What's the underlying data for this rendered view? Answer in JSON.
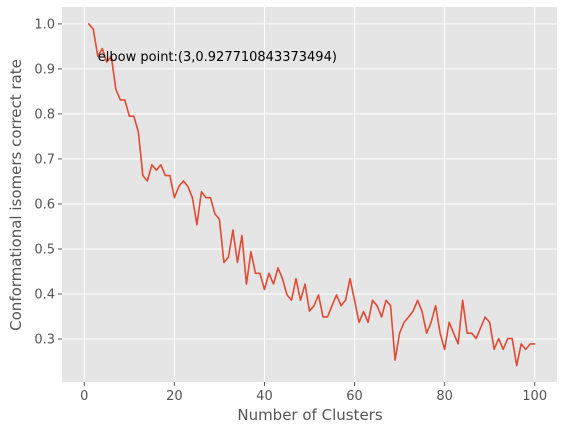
{
  "chart_data": {
    "type": "line",
    "xlabel": "Number of Clusters",
    "ylabel": "Conformational isomers correct rate",
    "xlim": [
      -4.95,
      104.95
    ],
    "ylim": [
      0.2045,
      1.0375
    ],
    "x_ticks": [
      0,
      20,
      40,
      60,
      80,
      100
    ],
    "y_ticks": [
      0.3,
      0.4,
      0.5,
      0.6,
      0.7,
      0.8,
      0.9,
      1.0
    ],
    "x_tick_labels": [
      "0",
      "20",
      "40",
      "60",
      "80",
      "100"
    ],
    "y_tick_labels": [
      "0.3",
      "0.4",
      "0.5",
      "0.6",
      "0.7",
      "0.8",
      "0.9",
      "1.0"
    ],
    "grid": true,
    "series": [
      {
        "color": "#E24A33",
        "x": [
          1,
          2,
          3,
          4,
          5,
          6,
          7,
          8,
          9,
          10,
          11,
          12,
          13,
          14,
          15,
          16,
          17,
          18,
          19,
          20,
          21,
          22,
          23,
          24,
          25,
          26,
          27,
          28,
          29,
          30,
          31,
          32,
          33,
          34,
          35,
          36,
          37,
          38,
          39,
          40,
          41,
          42,
          43,
          44,
          45,
          46,
          47,
          48,
          49,
          50,
          51,
          52,
          53,
          54,
          55,
          56,
          57,
          58,
          59,
          60,
          61,
          62,
          63,
          64,
          65,
          66,
          67,
          68,
          69,
          70,
          71,
          72,
          73,
          74,
          75,
          76,
          77,
          78,
          79,
          80,
          81,
          82,
          83,
          84,
          85,
          86,
          87,
          88,
          89,
          90,
          91,
          92,
          93,
          94,
          95,
          96,
          97,
          98,
          99,
          100
        ],
        "y": [
          1.0,
          0.988,
          0.928,
          0.945,
          0.915,
          0.928,
          0.855,
          0.831,
          0.831,
          0.795,
          0.795,
          0.76,
          0.663,
          0.651,
          0.687,
          0.675,
          0.687,
          0.663,
          0.663,
          0.614,
          0.639,
          0.651,
          0.639,
          0.614,
          0.554,
          0.627,
          0.614,
          0.614,
          0.578,
          0.566,
          0.47,
          0.482,
          0.542,
          0.47,
          0.53,
          0.422,
          0.494,
          0.446,
          0.446,
          0.41,
          0.446,
          0.422,
          0.458,
          0.434,
          0.398,
          0.386,
          0.434,
          0.386,
          0.422,
          0.362,
          0.374,
          0.398,
          0.349,
          0.349,
          0.374,
          0.398,
          0.374,
          0.386,
          0.434,
          0.386,
          0.337,
          0.361,
          0.337,
          0.386,
          0.374,
          0.349,
          0.386,
          0.374,
          0.253,
          0.313,
          0.337,
          0.349,
          0.362,
          0.386,
          0.361,
          0.313,
          0.337,
          0.374,
          0.313,
          0.277,
          0.337,
          0.313,
          0.289,
          0.386,
          0.313,
          0.313,
          0.301,
          0.325,
          0.349,
          0.337,
          0.277,
          0.301,
          0.277,
          0.301,
          0.301,
          0.241,
          0.289,
          0.277,
          0.289,
          0.289
        ]
      }
    ],
    "annotations": [
      {
        "text": "elbow point:(3,0.927710843373494)",
        "x": 3,
        "y": 0.927710843373494
      }
    ]
  }
}
